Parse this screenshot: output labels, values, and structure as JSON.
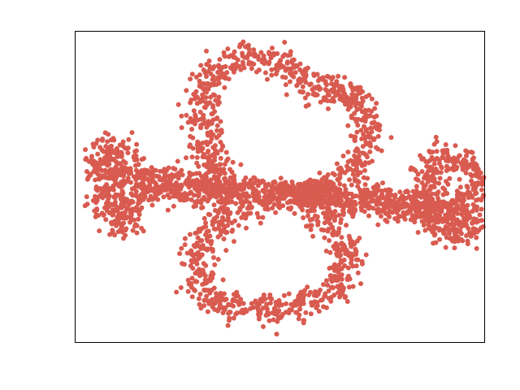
{
  "chart_data": {
    "type": "scatter",
    "title": "",
    "xlabel": "",
    "ylabel": "",
    "xlim": [
      0,
      100
    ],
    "ylim": [
      0,
      76
    ],
    "grid": false,
    "legend": "none",
    "series": [
      {
        "color": "#d95b50",
        "shape": "figure-eight with two horizontal lobes",
        "point_count": 3200,
        "values": [
          {
            "x": 5.5,
            "y": 42.5
          },
          {
            "x": 8.6,
            "y": 47.8
          },
          {
            "x": 12.1,
            "y": 44.4
          },
          {
            "x": 6.5,
            "y": 33.2
          },
          {
            "x": 11.5,
            "y": 27.8
          },
          {
            "x": 14.4,
            "y": 36.8
          },
          {
            "x": 17.8,
            "y": 38.1
          },
          {
            "x": 21.2,
            "y": 37.5
          },
          {
            "x": 24.8,
            "y": 36.1
          },
          {
            "x": 29.5,
            "y": 36.4
          },
          {
            "x": 34.1,
            "y": 37.0
          },
          {
            "x": 38.8,
            "y": 36.1
          },
          {
            "x": 33.0,
            "y": 44.8
          },
          {
            "x": 30.8,
            "y": 54.8
          },
          {
            "x": 32.4,
            "y": 63.8
          },
          {
            "x": 37.4,
            "y": 68.4
          },
          {
            "x": 44.0,
            "y": 70.0
          },
          {
            "x": 51.6,
            "y": 68.3
          },
          {
            "x": 55.7,
            "y": 62.1
          },
          {
            "x": 68.2,
            "y": 60.4
          },
          {
            "x": 72.0,
            "y": 52.4
          },
          {
            "x": 69.8,
            "y": 45.0
          },
          {
            "x": 63.8,
            "y": 39.5
          },
          {
            "x": 56.5,
            "y": 34.7
          },
          {
            "x": 63.0,
            "y": 27.4
          },
          {
            "x": 66.5,
            "y": 20.8
          },
          {
            "x": 64.0,
            "y": 13.5
          },
          {
            "x": 56.2,
            "y": 8.8
          },
          {
            "x": 46.4,
            "y": 8.1
          },
          {
            "x": 36.7,
            "y": 8.6
          },
          {
            "x": 30.6,
            "y": 14.0
          },
          {
            "x": 29.6,
            "y": 21.4
          },
          {
            "x": 33.9,
            "y": 27.4
          },
          {
            "x": 41.5,
            "y": 33.4
          },
          {
            "x": 47.3,
            "y": 35.6
          },
          {
            "x": 52.0,
            "y": 36.2
          },
          {
            "x": 65.6,
            "y": 35.2
          },
          {
            "x": 70.3,
            "y": 35.4
          },
          {
            "x": 74.8,
            "y": 36.1
          },
          {
            "x": 79.4,
            "y": 35.0
          },
          {
            "x": 84.6,
            "y": 32.5
          },
          {
            "x": 89.7,
            "y": 33.9
          },
          {
            "x": 95.5,
            "y": 34.8
          },
          {
            "x": 99.3,
            "y": 36.9
          },
          {
            "x": 97.8,
            "y": 43.0
          },
          {
            "x": 91.4,
            "y": 45.9
          },
          {
            "x": 86.9,
            "y": 41.4
          },
          {
            "x": 85.0,
            "y": 35.4
          },
          {
            "x": 88.0,
            "y": 27.4
          },
          {
            "x": 93.5,
            "y": 25.4
          },
          {
            "x": 97.3,
            "y": 30.6
          }
        ]
      }
    ]
  }
}
